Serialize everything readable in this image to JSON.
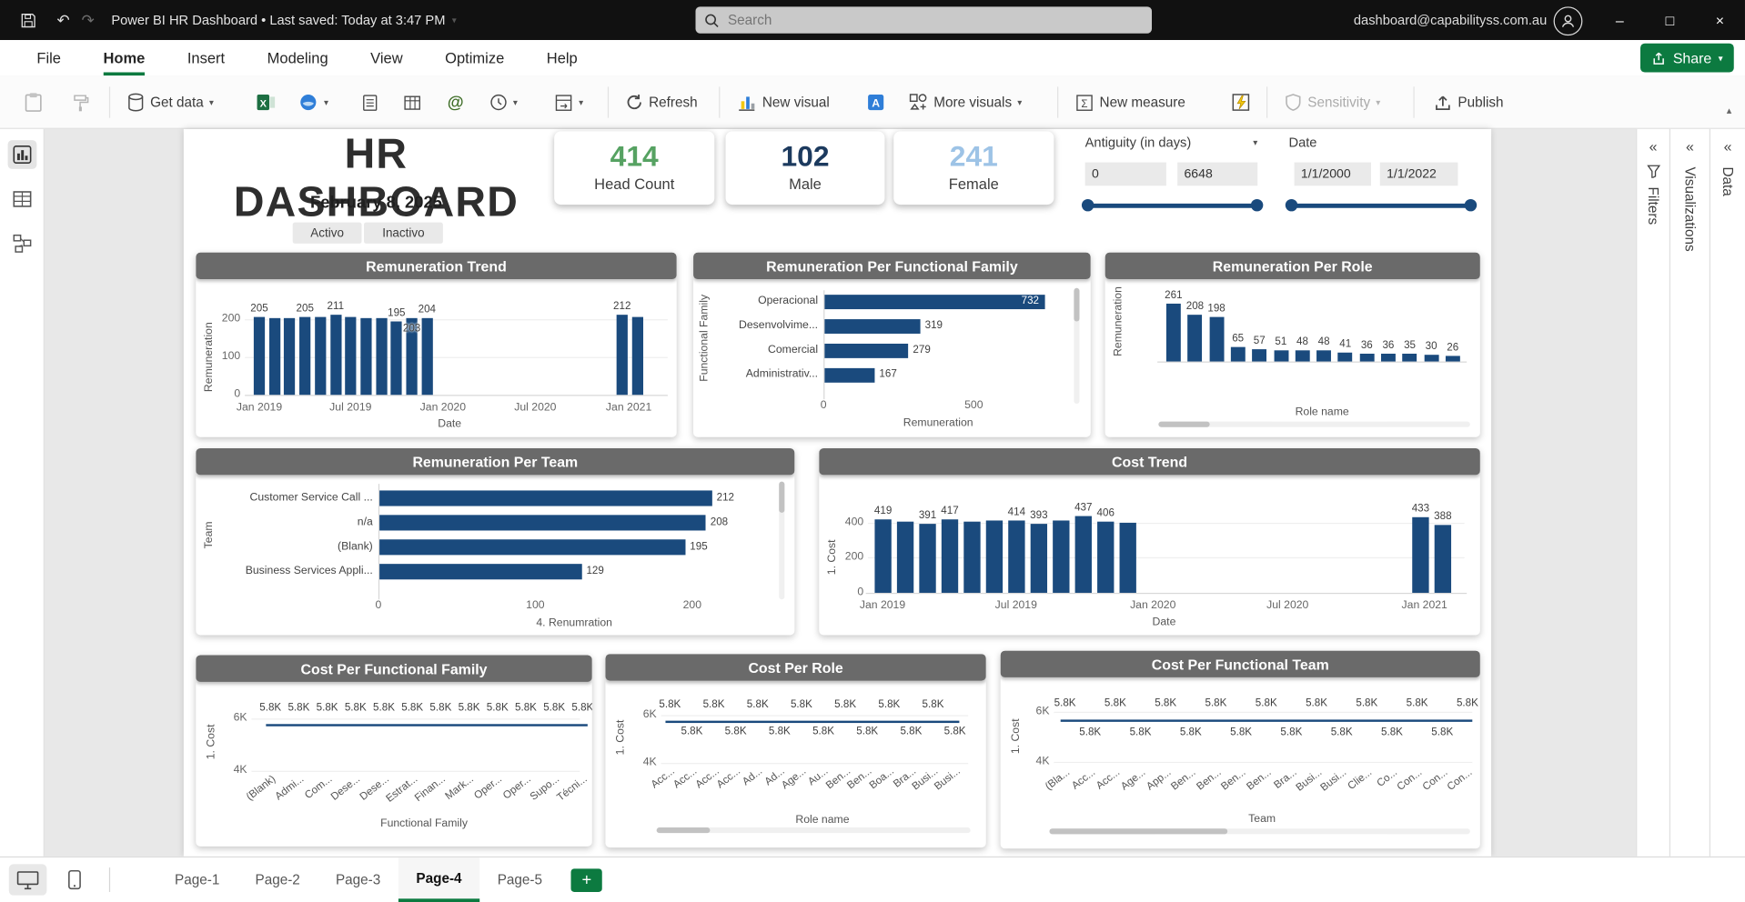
{
  "colors": {
    "accent_green": "#0c7a40",
    "bar_blue": "#1a4a7d",
    "chart_header_gray": "#6a6a6a"
  },
  "titlebar": {
    "title": "Power BI HR Dashboard  •  Last saved: Today at 3:47 PM",
    "search_placeholder": "Search",
    "email": "dashboard@capabilityss.com.au"
  },
  "menu": {
    "items": [
      "File",
      "Home",
      "Insert",
      "Modeling",
      "View",
      "Optimize",
      "Help"
    ],
    "share": "Share"
  },
  "ribbon": {
    "get_data": "Get data",
    "refresh": "Refresh",
    "new_visual": "New visual",
    "more_visuals": "More visuals",
    "new_measure": "New measure",
    "sensitivity": "Sensitivity",
    "publish": "Publish"
  },
  "side_panels": {
    "filters": "Filters",
    "visualizations": "Visualizations",
    "data": "Data"
  },
  "pages": {
    "tabs": [
      "Page-1",
      "Page-2",
      "Page-3",
      "Page-4",
      "Page-5"
    ],
    "active_index": 3
  },
  "report": {
    "title": "HR DASHBOARD",
    "date": "February 8, 2025",
    "button_active": "Activo",
    "button_inactive": "Inactivo",
    "kpis": [
      {
        "value": "414",
        "label": "Head Count",
        "color": "#56a262"
      },
      {
        "value": "102",
        "label": "Male",
        "color": "#1c3a5e"
      },
      {
        "value": "241",
        "label": "Female",
        "color": "#9dc3e6"
      }
    ],
    "slicer_antiquity": {
      "title": "Antiguity (in days)",
      "from": "0",
      "to": "6648"
    },
    "slicer_date": {
      "title": "Date",
      "from": "1/1/2000",
      "to": "1/1/2022"
    }
  },
  "chart_data": {
    "remuneration_trend": {
      "type": "bar",
      "title": "Remuneration Trend",
      "xlabel": "Date",
      "ylabel": "Remuneration",
      "yticks": [
        200,
        100,
        0
      ],
      "xticks": [
        "Jan 2019",
        "Jul 2019",
        "Jan 2020",
        "Jul 2020",
        "Jan 2021"
      ],
      "bars_2019_2020": [
        {
          "v": 205,
          "l": "205"
        },
        {
          "v": 204,
          "l": ""
        },
        {
          "v": 203,
          "l": ""
        },
        {
          "v": 205,
          "l": "205"
        },
        {
          "v": 207,
          "l": ""
        },
        {
          "v": 211,
          "l": "211"
        },
        {
          "v": 206,
          "l": ""
        },
        {
          "v": 204,
          "l": ""
        },
        {
          "v": 202,
          "l": ""
        },
        {
          "v": 195,
          "l": "195"
        },
        {
          "v": 203,
          "l": "203",
          "low": true
        },
        {
          "v": 204,
          "l": "204"
        }
      ],
      "bars_2021": [
        {
          "v": 212,
          "l": "212"
        },
        {
          "v": 207,
          "l": ""
        }
      ]
    },
    "remuneration_per_functional_family": {
      "type": "barh",
      "title": "Remuneration Per Functional Family",
      "xlabel": "Remuneration",
      "ylabel": "Functional Family",
      "xticks": [
        0,
        500
      ],
      "categories": [
        "Operacional",
        "Desenvolvime...",
        "Comercial",
        "Administrativ..."
      ],
      "values": [
        732,
        319,
        279,
        167
      ]
    },
    "remuneration_per_role": {
      "type": "bar",
      "title": "Remuneration Per Role",
      "xlabel": "Role name",
      "ylabel": "Remuneration",
      "values": [
        261,
        208,
        198,
        65,
        57,
        51,
        48,
        48,
        41,
        36,
        36,
        35,
        30,
        26
      ]
    },
    "remuneration_per_team": {
      "type": "barh",
      "title": "Remuneration Per Team",
      "xlabel": "4. Renumration",
      "ylabel": "Team",
      "xticks": [
        0,
        100,
        200
      ],
      "categories": [
        "Customer Service Call ...",
        "n/a",
        "(Blank)",
        "Business Services Appli..."
      ],
      "values": [
        212,
        208,
        195,
        129
      ]
    },
    "cost_trend": {
      "type": "bar",
      "title": "Cost Trend",
      "xlabel": "Date",
      "ylabel": "1. Cost",
      "yticks": [
        400,
        200,
        0
      ],
      "xticks": [
        "Jan 2019",
        "Jul 2019",
        "Jan 2020",
        "Jul 2020",
        "Jan 2021"
      ],
      "bars_2019_2020": [
        {
          "v": 419,
          "l": "419"
        },
        {
          "v": 404,
          "l": ""
        },
        {
          "v": 391,
          "l": "391"
        },
        {
          "v": 417,
          "l": "417"
        },
        {
          "v": 406,
          "l": ""
        },
        {
          "v": 409,
          "l": ""
        },
        {
          "v": 414,
          "l": "414"
        },
        {
          "v": 393,
          "l": "393"
        },
        {
          "v": 412,
          "l": ""
        },
        {
          "v": 437,
          "l": "437"
        },
        {
          "v": 406,
          "l": "406"
        },
        {
          "v": 401,
          "l": ""
        }
      ],
      "bars_2021": [
        {
          "v": 433,
          "l": "433"
        },
        {
          "v": 388,
          "l": "388"
        }
      ]
    },
    "cost_per_functional_family": {
      "type": "line",
      "title": "Cost Per Functional Family",
      "xlabel": "Functional Family",
      "ylabel": "1. Cost",
      "yticks": [
        "6K",
        "4K"
      ],
      "categories": [
        "(Blank)",
        "Admi...",
        "Com...",
        "Dese...",
        "Dese...",
        "Estrat...",
        "Finan...",
        "Mark...",
        "Oper...",
        "Oper...",
        "Supo...",
        "Técni..."
      ],
      "value": 5800,
      "value_label": "5.8K"
    },
    "cost_per_role": {
      "type": "line",
      "title": "Cost Per Role",
      "xlabel": "Role name",
      "ylabel": "1. Cost",
      "yticks": [
        "6K",
        "4K"
      ],
      "categories": [
        "Acc...",
        "Acc...",
        "Acc...",
        "Acc...",
        "Ad...",
        "Ad...",
        "Age...",
        "Au...",
        "Ben...",
        "Ben...",
        "Boa...",
        "Bra...",
        "Busi...",
        "Busi..."
      ],
      "value": 5800,
      "value_label": "5.8K"
    },
    "cost_per_functional_team": {
      "type": "line",
      "title": "Cost Per Functional Team",
      "xlabel": "Team",
      "ylabel": "1. Cost",
      "yticks": [
        "6K",
        "4K"
      ],
      "categories": [
        "(Bla...",
        "Acc...",
        "Acc...",
        "Age...",
        "App...",
        "Ben...",
        "Ben...",
        "Ben...",
        "Ben...",
        "Bra...",
        "Busi...",
        "Busi...",
        "Clie...",
        "Co...",
        "Con...",
        "Con...",
        "Con..."
      ],
      "value": 5800,
      "value_label": "5.8K"
    }
  }
}
